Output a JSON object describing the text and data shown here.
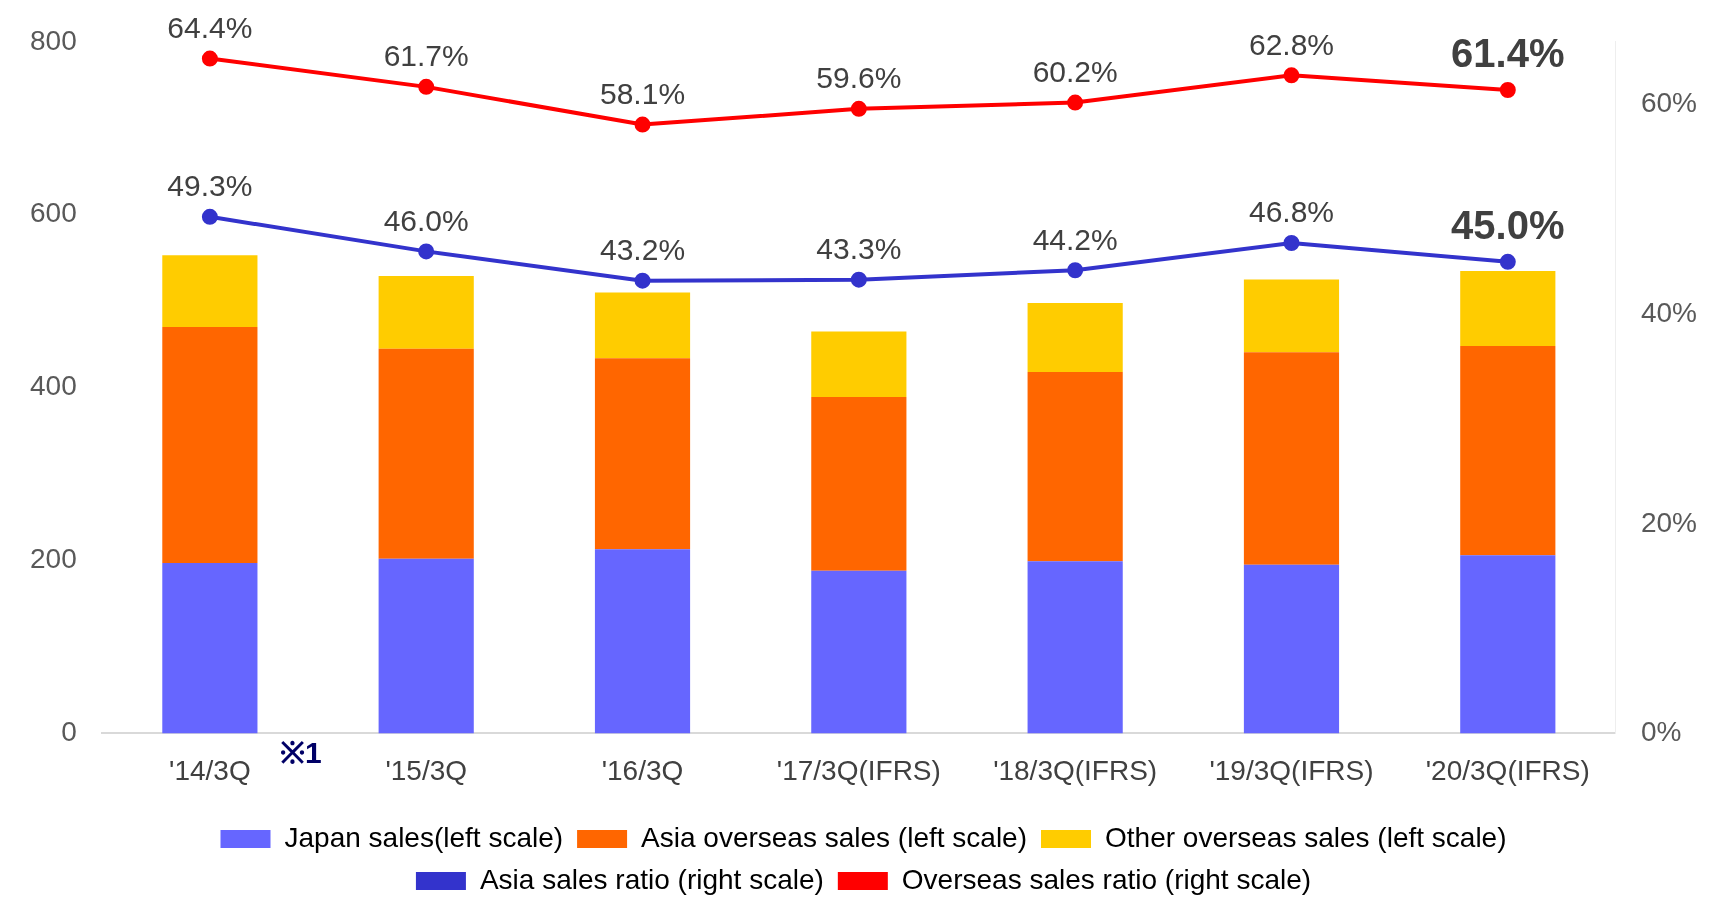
{
  "chart_data": {
    "type": "bar",
    "stacked": true,
    "categories": [
      "'14/3Q",
      "'15/3Q",
      "'16/3Q",
      "'17/3Q(IFRS)",
      "'18/3Q(IFRS)",
      "'19/3Q(IFRS)",
      "'20/3Q(IFRS)"
    ],
    "series": [
      {
        "name": "Japan sales(left scale)",
        "color": "#6666ff",
        "values": [
          197,
          202,
          213,
          188,
          199,
          195,
          206
        ]
      },
      {
        "name": "Asia overseas sales (left scale)",
        "color": "#ff6600",
        "values": [
          273,
          243,
          221,
          201,
          219,
          246,
          242
        ]
      },
      {
        "name": "Other overseas sales (left scale)",
        "color": "#ffcc00",
        "values": [
          83,
          84,
          76,
          76,
          80,
          84,
          87
        ]
      },
      {
        "name": "Asia sales ratio (right scale)",
        "type": "line",
        "axis": "y2",
        "color": "#3333cc",
        "values": [
          49.3,
          46.0,
          43.2,
          43.3,
          44.2,
          46.8,
          45.0
        ],
        "value_labels": [
          "49.3%",
          "46.0%",
          "43.2%",
          "43.3%",
          "44.2%",
          "46.8%",
          "45.0%"
        ]
      },
      {
        "name": "Overseas sales ratio (right scale)",
        "type": "line",
        "axis": "y2",
        "color": "#ff0000",
        "values": [
          64.4,
          61.7,
          58.1,
          59.6,
          60.2,
          62.8,
          61.4
        ],
        "value_labels": [
          "64.4%",
          "61.7%",
          "58.1%",
          "59.6%",
          "60.2%",
          "62.8%",
          "61.4%"
        ]
      }
    ],
    "ylim": [
      0,
      800
    ],
    "yticks": [
      0,
      200,
      400,
      600,
      800
    ],
    "y2lim": [
      0,
      66
    ],
    "y2ticks": [
      {
        "value": 0,
        "label": "0%"
      },
      {
        "value": 20,
        "label": "20%"
      },
      {
        "value": 40,
        "label": "40%"
      },
      {
        "value": 60,
        "label": "60%"
      }
    ],
    "grid": false,
    "legend": "bottom",
    "marker": "circle",
    "line_style": "solid",
    "annotations": [
      {
        "text": "※1",
        "x": "'14/3Q",
        "y": 0
      }
    ]
  }
}
